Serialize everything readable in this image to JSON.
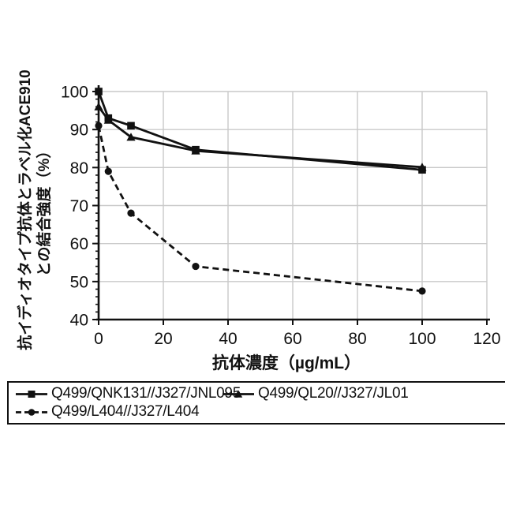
{
  "chart_data": {
    "type": "line",
    "x": [
      0,
      3,
      10,
      30,
      100
    ],
    "series": [
      {
        "name": "Q499/QNK131//J327/JNL095",
        "marker": "square",
        "line": "solid",
        "values": [
          100,
          93,
          91,
          84.7,
          79.4
        ]
      },
      {
        "name": "Q499/QL20//J327/JL01",
        "marker": "triangle",
        "line": "solid",
        "values": [
          96,
          92.5,
          88,
          84.4,
          80.1
        ]
      },
      {
        "name": "Q499/L404//J327/L404",
        "marker": "circle",
        "line": "dashed",
        "values": [
          91,
          79,
          68,
          54,
          47.5
        ]
      }
    ],
    "xlabel": "抗体濃度（µg/mL）",
    "ylabel_line1": "抗イディオタイプ抗体とラベル化ACE910",
    "ylabel_line2": "との結合強度（%）",
    "xlim": [
      0,
      120
    ],
    "ylim": [
      40,
      100
    ],
    "x_ticks": [
      0,
      20,
      40,
      60,
      80,
      100,
      120
    ],
    "y_ticks": [
      40,
      50,
      60,
      70,
      80,
      90,
      100
    ],
    "y_minor_tick_step": 2,
    "grid": true,
    "legend_position": "bottom-box",
    "colors": {
      "line": "#111111",
      "grid": "#c9c9c9",
      "background": "#ffffff"
    }
  }
}
